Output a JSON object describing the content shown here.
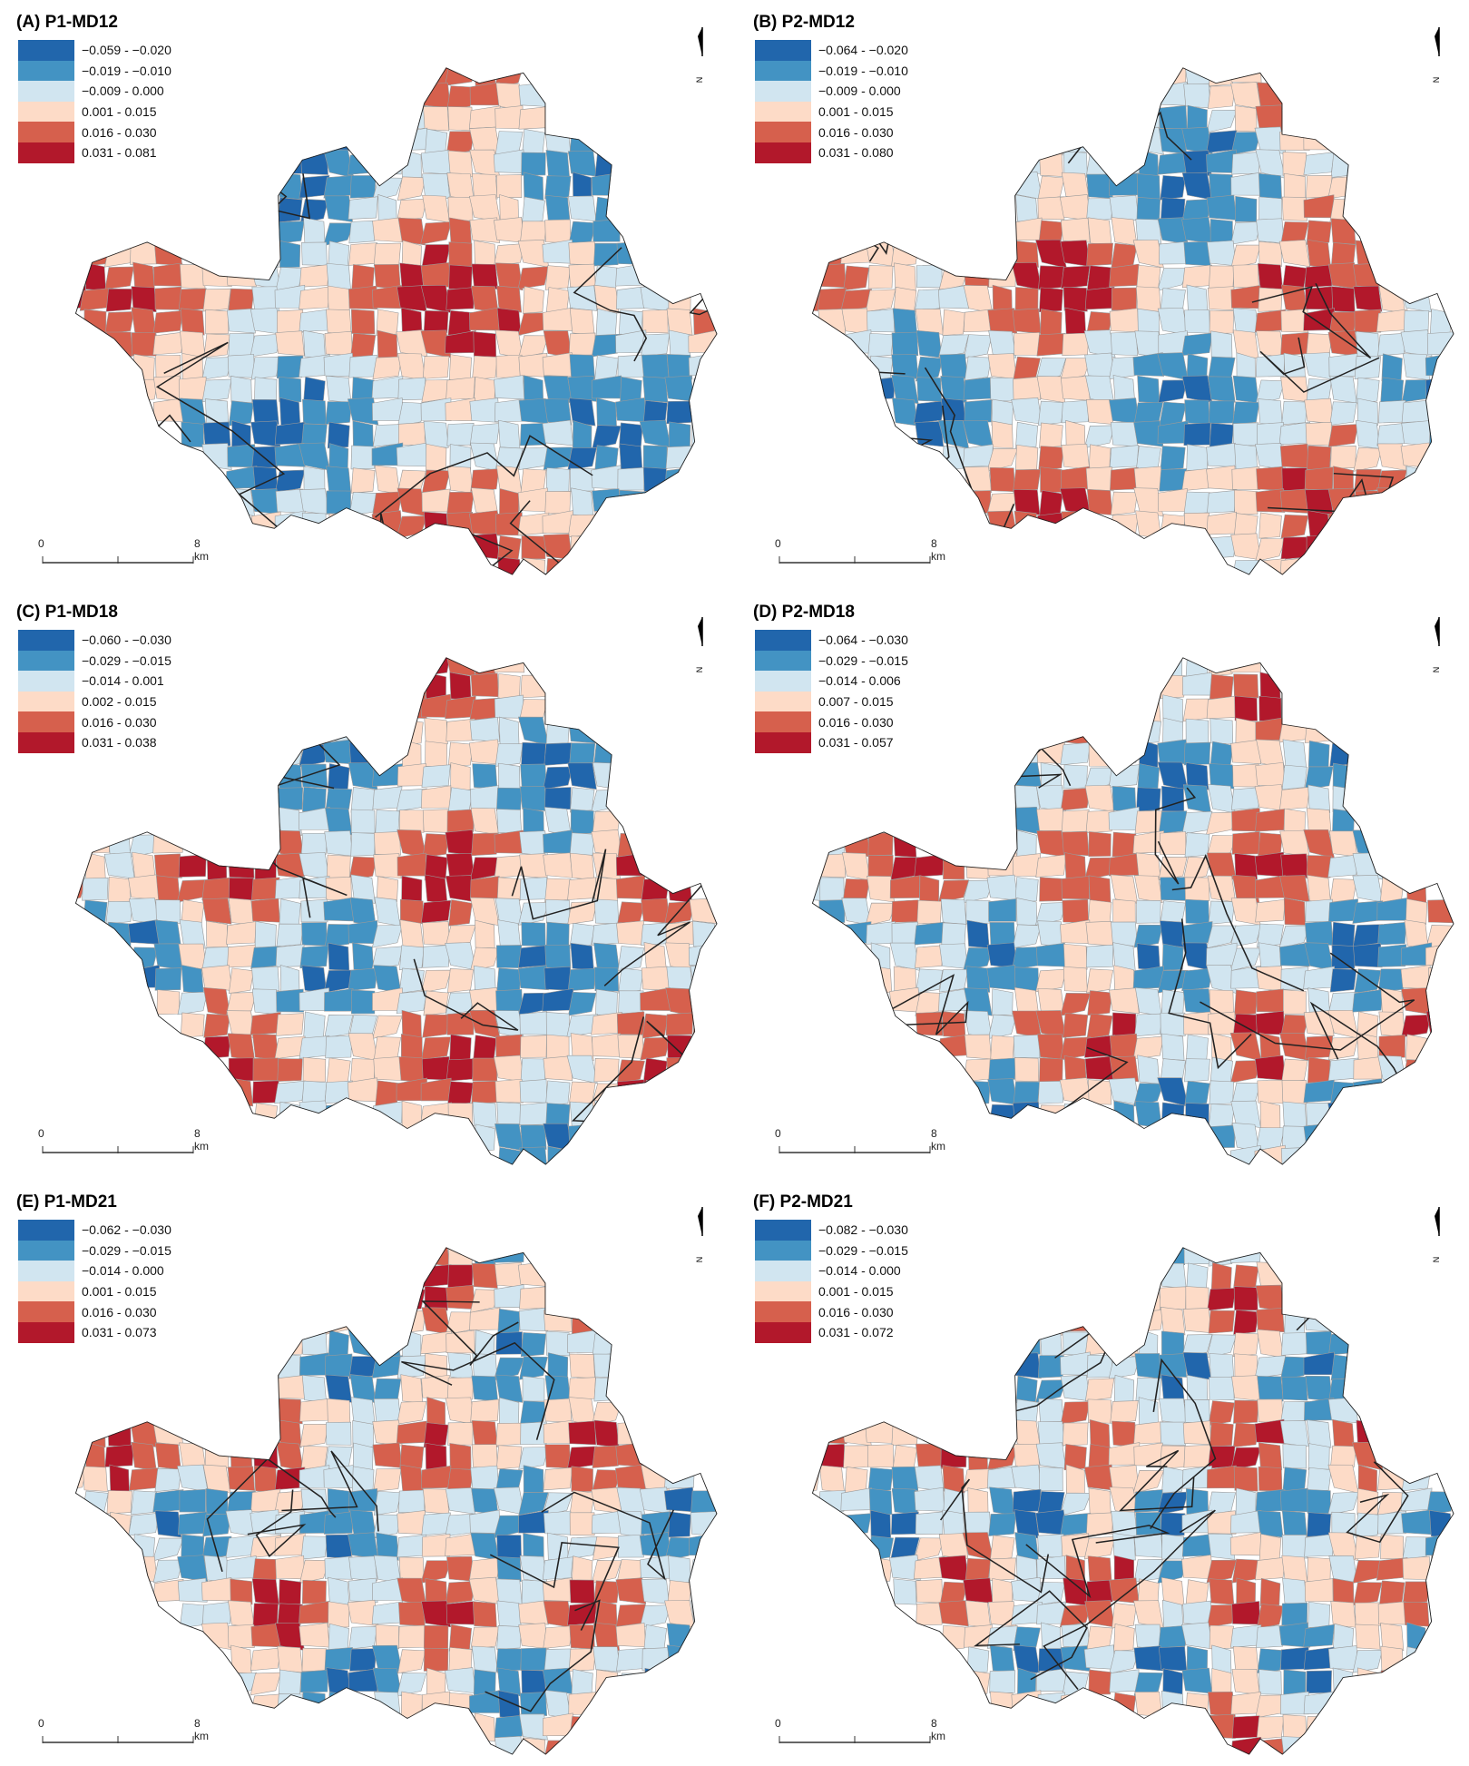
{
  "colors": [
    "#2166ac",
    "#4393c3",
    "#d1e5f0",
    "#fddbc7",
    "#d6604d",
    "#b2182b"
  ],
  "panels": [
    {
      "title": "(A) P1-MD12",
      "legend": [
        "−0.059 - −0.020",
        "−0.019 - −0.010",
        "−0.009 - 0.000",
        "0.001 - 0.015",
        "0.016 - 0.030",
        "0.031 - 0.081"
      ]
    },
    {
      "title": "(B) P2-MD12",
      "legend": [
        "−0.064 - −0.020",
        "−0.019 - −0.010",
        "−0.009 - 0.000",
        "0.001 - 0.015",
        "0.016 - 0.030",
        "0.031 - 0.080"
      ]
    },
    {
      "title": "(C) P1-MD18",
      "legend": [
        "−0.060 - −0.030",
        "−0.029 - −0.015",
        "−0.014 - 0.001",
        "0.002 - 0.015",
        "0.016 - 0.030",
        "0.031 - 0.038"
      ]
    },
    {
      "title": "(D) P2-MD18",
      "legend": [
        "−0.064 - −0.030",
        "−0.029 - −0.015",
        "−0.014 - 0.006",
        "0.007 - 0.015",
        "0.016 - 0.030",
        "0.031 - 0.057"
      ]
    },
    {
      "title": "(E) P1-MD21",
      "legend": [
        "−0.062 - −0.030",
        "−0.029 - −0.015",
        "−0.014 - 0.000",
        "0.001 - 0.015",
        "0.016 - 0.030",
        "0.031 - 0.073"
      ]
    },
    {
      "title": "(F) P2-MD21",
      "legend": [
        "−0.082 - −0.030",
        "−0.029 - −0.015",
        "−0.014 - 0.000",
        "0.001 - 0.015",
        "0.016 - 0.030",
        "0.031 - 0.072"
      ]
    }
  ],
  "scale": {
    "start": "0",
    "end": "8 km"
  },
  "north_label": "N"
}
